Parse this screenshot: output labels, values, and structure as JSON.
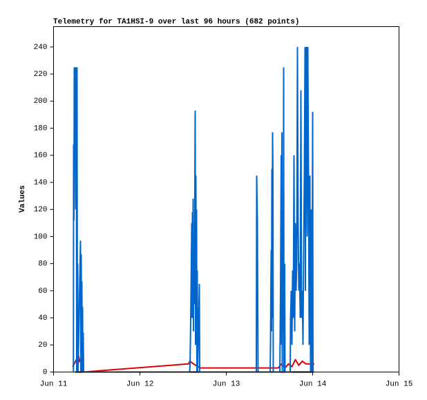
{
  "chart_data": {
    "type": "line",
    "title": "Telemetry for TA1HSI-9 over last 96 hours (682 points)",
    "ylabel": "Values",
    "xlim": [
      11,
      15
    ],
    "xticks": [
      {
        "value": 11,
        "label": "Jun 11"
      },
      {
        "value": 12,
        "label": "Jun 12"
      },
      {
        "value": 13,
        "label": "Jun 13"
      },
      {
        "value": 14,
        "label": "Jun 14"
      },
      {
        "value": 15,
        "label": "Jun 15"
      }
    ],
    "ylim": [
      0,
      255
    ],
    "yticks": [
      0,
      20,
      40,
      60,
      80,
      100,
      120,
      140,
      160,
      180,
      200,
      220,
      240
    ],
    "grid": false,
    "series": [
      {
        "color": "#000000",
        "x": [
          11.25,
          14.0
        ],
        "values": [
          0,
          0
        ]
      },
      {
        "color": "#dd0000",
        "x": [
          11.22,
          11.24,
          11.27,
          11.28,
          11.29,
          11.3,
          11.32,
          11.33,
          11.35,
          12.56,
          12.58,
          12.62,
          12.7,
          13.6,
          13.64,
          13.68,
          13.72,
          13.76,
          13.8,
          13.84,
          13.88,
          13.92,
          14.0,
          14.02
        ],
        "values": [
          4,
          6,
          10,
          4,
          12,
          8,
          10,
          2,
          0,
          6,
          8,
          6,
          3,
          3,
          6,
          3,
          6,
          4,
          9,
          5,
          8,
          6,
          6,
          6
        ]
      },
      {
        "color": "#0066cc",
        "x": [
          11.23,
          11.232,
          11.236,
          11.24,
          11.244,
          11.248,
          11.256,
          11.264,
          11.268,
          11.272,
          11.276,
          11.28,
          11.284,
          11.312,
          11.316,
          11.32,
          11.324,
          11.328,
          11.332,
          11.336,
          11.34,
          11.344,
          11.348,
          12.576,
          12.58,
          12.584,
          12.592,
          12.6,
          12.604,
          12.608,
          12.612,
          12.616,
          12.62,
          12.624,
          12.628,
          12.632,
          12.64,
          12.644,
          12.648,
          12.652,
          12.656,
          12.66,
          12.664,
          12.668,
          12.688,
          12.692,
          13.348,
          13.352,
          13.36,
          13.368,
          13.508,
          13.512,
          13.516,
          13.52,
          13.524,
          13.528,
          13.532,
          13.536,
          13.54,
          13.544,
          13.62,
          13.624,
          13.628,
          13.636,
          13.64,
          13.644,
          13.648,
          13.656,
          13.66,
          13.664,
          13.668,
          13.676,
          13.68,
          13.74,
          13.744,
          13.752,
          13.76,
          13.768,
          13.776,
          13.784,
          13.792,
          13.8,
          13.808,
          13.816,
          13.824,
          13.832,
          13.84,
          13.848,
          13.856,
          13.864,
          13.872,
          13.88,
          13.888,
          13.896,
          13.904,
          13.912,
          13.916,
          13.92,
          13.928,
          13.936,
          13.944,
          13.952,
          13.96,
          13.968,
          13.976,
          13.984,
          13.992,
          14.0,
          14.004,
          14.02
        ],
        "values": [
          0,
          168,
          112,
          225,
          150,
          225,
          120,
          225,
          0,
          225,
          0,
          80,
          0,
          97,
          0,
          87,
          20,
          67,
          0,
          48,
          0,
          29,
          0,
          0,
          5,
          20,
          60,
          110,
          40,
          118,
          60,
          128,
          30,
          97,
          50,
          80,
          193,
          20,
          145,
          60,
          120,
          0,
          75,
          0,
          65,
          0,
          0,
          145,
          112,
          0,
          0,
          20,
          60,
          90,
          30,
          150,
          40,
          177,
          145,
          0,
          0,
          30,
          60,
          160,
          20,
          177,
          0,
          100,
          30,
          225,
          0,
          80,
          0,
          0,
          40,
          60,
          20,
          75,
          40,
          160,
          30,
          110,
          60,
          80,
          240,
          110,
          60,
          80,
          40,
          208,
          40,
          60,
          20,
          90,
          145,
          240,
          60,
          176,
          240,
          100,
          240,
          145,
          20,
          145,
          0,
          120,
          0,
          192,
          0,
          0
        ]
      }
    ]
  }
}
